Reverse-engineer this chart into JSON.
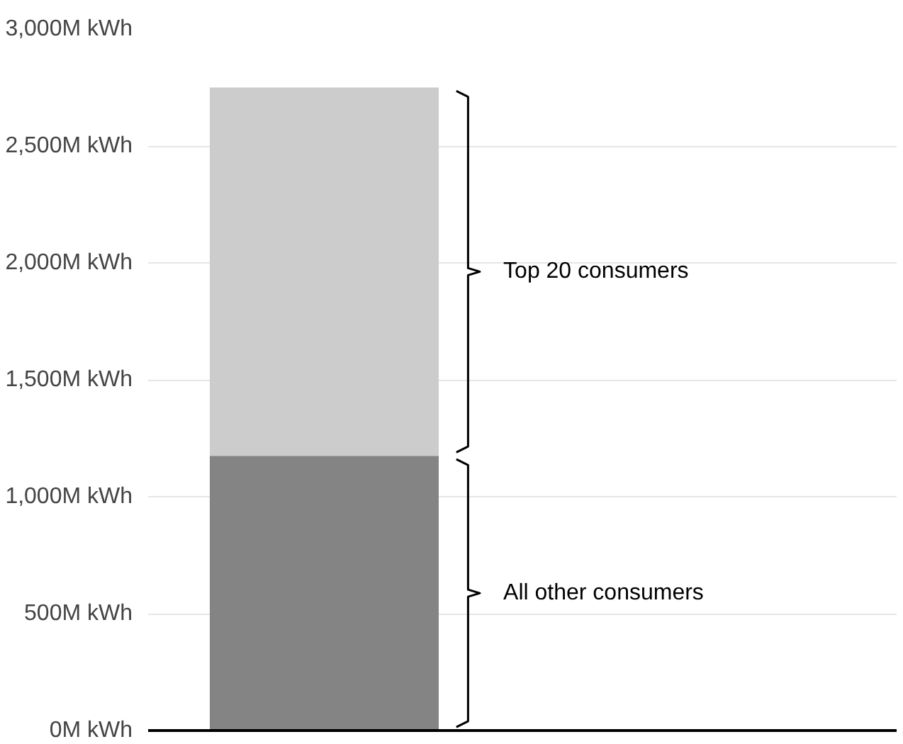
{
  "chart_data": {
    "type": "bar",
    "stacked": true,
    "categories": [
      null
    ],
    "series": [
      {
        "name": "All other consumers",
        "color": "#838483",
        "values": [
          1175
        ]
      },
      {
        "name": "Top 20 consumers",
        "color": "#cbcccb",
        "values": [
          1575
        ]
      }
    ],
    "ylim": [
      0,
      3000
    ],
    "yticks": [
      {
        "value": 0,
        "label": "0M kWh"
      },
      {
        "value": 500,
        "label": "500M kWh"
      },
      {
        "value": 1000,
        "label": "1,000M kWh"
      },
      {
        "value": 1500,
        "label": "1,500M kWh"
      },
      {
        "value": 2000,
        "label": "2,000M kWh"
      },
      {
        "value": 2500,
        "label": "2,500M kWh"
      },
      {
        "value": 3000,
        "label": "3,000M kWh"
      }
    ],
    "grid": "y"
  }
}
